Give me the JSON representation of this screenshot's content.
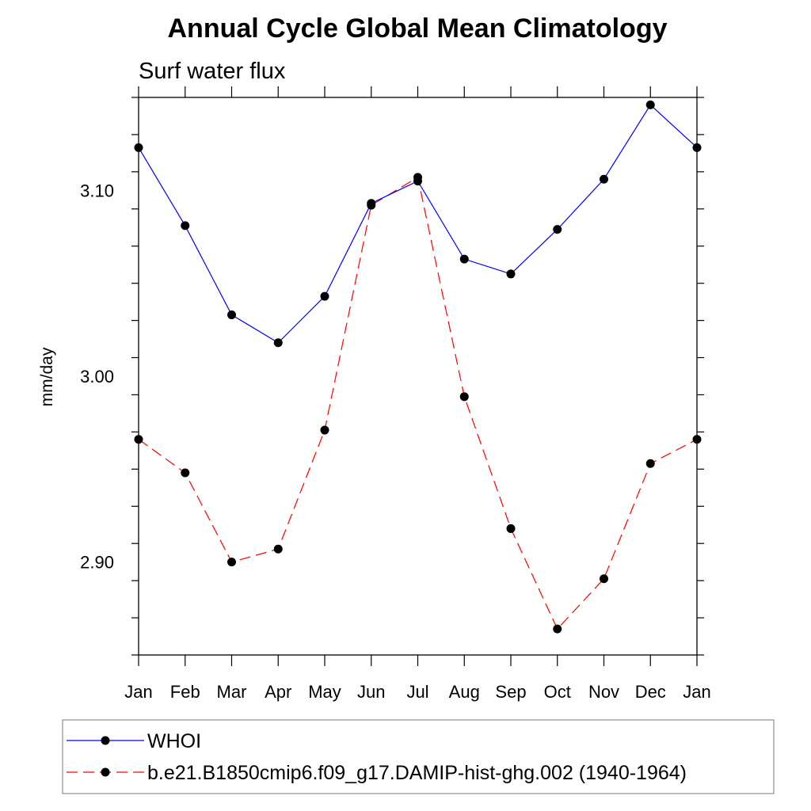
{
  "chart_data": {
    "type": "line",
    "title": "Annual Cycle Global Mean Climatology",
    "subtitle": "Surf water flux",
    "xlabel": "",
    "ylabel": "mm/day",
    "categories": [
      "Jan",
      "Feb",
      "Mar",
      "Apr",
      "May",
      "Jun",
      "Jul",
      "Aug",
      "Sep",
      "Oct",
      "Nov",
      "Dec",
      "Jan"
    ],
    "ylim": [
      2.85,
      3.15
    ],
    "yticks": [
      2.9,
      3.0,
      3.1
    ],
    "ytick_labels": [
      "2.90",
      "3.00",
      "3.10"
    ],
    "yminor_step": 0.02,
    "grid": false,
    "legend_position": "bottom",
    "series": [
      {
        "name": "WHOI",
        "color": "#0000ff",
        "dash": "solid",
        "values": [
          3.123,
          3.081,
          3.033,
          3.018,
          3.043,
          3.093,
          3.105,
          3.063,
          3.055,
          3.079,
          3.106,
          3.146,
          3.123
        ]
      },
      {
        "name": "b.e21.B1850cmip6.f09_g17.DAMIP-hist-ghg.002 (1940-1964)",
        "color": "#ff0000",
        "dash": "dashed",
        "values": [
          2.966,
          2.948,
          2.9,
          2.907,
          2.971,
          3.092,
          3.107,
          2.989,
          2.918,
          2.864,
          2.891,
          2.953,
          2.966
        ]
      }
    ]
  }
}
